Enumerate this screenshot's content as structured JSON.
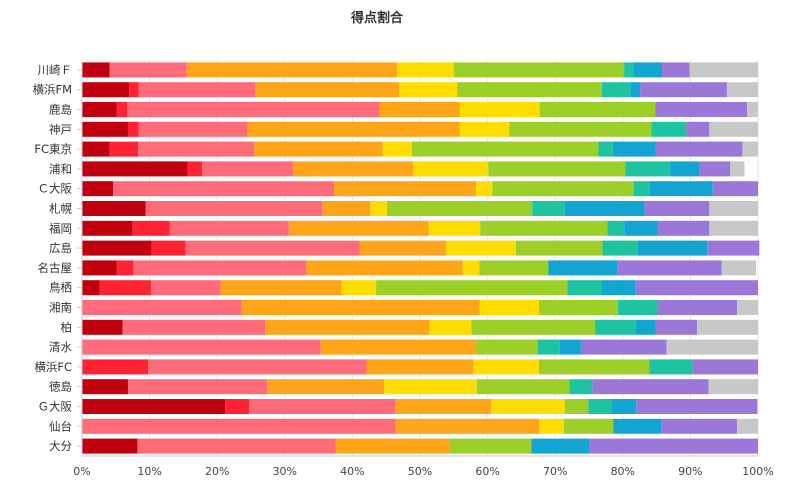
{
  "chart_data": {
    "type": "bar",
    "orientation": "horizontal",
    "stacked": true,
    "normalized": true,
    "title": "得点割合",
    "xlabel": "",
    "ylabel": "",
    "xlim": [
      0,
      100
    ],
    "x_ticks": [
      "0%",
      "10%",
      "20%",
      "30%",
      "40%",
      "50%",
      "60%",
      "70%",
      "80%",
      "90%",
      "100%"
    ],
    "grid": true,
    "legend": "none",
    "categories": [
      "川崎Ｆ",
      "横浜FM",
      "鹿島",
      "神戸",
      "FC東京",
      "浦和",
      "Ｃ大阪",
      "札幌",
      "福岡",
      "広島",
      "名古屋",
      "鳥栖",
      "湘南",
      "柏",
      "清水",
      "横浜FC",
      "徳島",
      "Ｇ大阪",
      "仙台",
      "大分"
    ],
    "series": [
      {
        "color": "#c0000f",
        "values": [
          4.1,
          7.0,
          5.1,
          6.8,
          4.1,
          15.6,
          4.6,
          9.4,
          7.5,
          10.3,
          5.1,
          2.6,
          0,
          6.0,
          0,
          0,
          6.8,
          21.2,
          0,
          8.2
        ]
      },
      {
        "color": "#ff2233",
        "values": [
          0,
          1.4,
          1.6,
          1.6,
          4.2,
          2.2,
          0,
          0,
          5.5,
          5.0,
          2.5,
          7.6,
          0,
          0,
          0,
          9.8,
          0,
          3.5,
          0,
          0
        ]
      },
      {
        "color": "#ff6b78",
        "values": [
          11.4,
          17.2,
          37.3,
          16.1,
          17.2,
          13.4,
          32.7,
          26.2,
          17.6,
          25.8,
          25.6,
          10.3,
          23.6,
          21.1,
          35.3,
          32.3,
          20.6,
          21.6,
          46.4,
          29.3
        ]
      },
      {
        "color": "#ffa51a",
        "values": [
          31.1,
          21.3,
          11.9,
          31.4,
          19.0,
          17.8,
          21.0,
          7.1,
          20.7,
          12.8,
          23.1,
          17.9,
          35.2,
          24.3,
          22.9,
          15.8,
          17.3,
          14.2,
          21.2,
          16.8
        ]
      },
      {
        "color": "#ffdd00",
        "values": [
          8.4,
          8.6,
          11.8,
          7.3,
          4.3,
          11.1,
          2.4,
          2.4,
          7.6,
          10.3,
          2.5,
          5.1,
          8.8,
          6.2,
          0,
          9.7,
          13.7,
          10.9,
          3.7,
          0
        ]
      },
      {
        "color": "#9ccf28",
        "values": [
          25.2,
          21.4,
          17.1,
          21.0,
          27.6,
          20.3,
          20.9,
          21.5,
          18.8,
          12.8,
          10.2,
          28.3,
          11.7,
          18.3,
          9.2,
          16.3,
          13.7,
          3.5,
          7.3,
          12.2
        ]
      },
      {
        "color": "#1ec4a0",
        "values": [
          1.4,
          4.2,
          0,
          5.2,
          2.1,
          6.6,
          2.4,
          4.8,
          2.5,
          5.2,
          0,
          5.0,
          5.9,
          6.0,
          3.3,
          6.4,
          3.4,
          3.5,
          0,
          0
        ]
      },
      {
        "color": "#13a4d2",
        "values": [
          4.2,
          1.5,
          0,
          0,
          6.4,
          4.4,
          9.3,
          11.8,
          5.0,
          10.3,
          10.2,
          5.1,
          0,
          3.0,
          3.1,
          0,
          0,
          3.6,
          7.1,
          8.5
        ]
      },
      {
        "color": "#9b78d8",
        "values": [
          4.1,
          12.8,
          13.6,
          3.4,
          12.8,
          4.5,
          6.7,
          9.6,
          7.6,
          7.7,
          15.4,
          18.1,
          11.7,
          6.1,
          12.7,
          9.7,
          17.2,
          17.9,
          11.2,
          25.0
        ]
      },
      {
        "color": "#c8c8c8",
        "values": [
          10.1,
          4.6,
          1.6,
          7.2,
          2.3,
          2.1,
          0,
          7.2,
          7.2,
          0,
          5.1,
          0,
          3.1,
          9.0,
          13.5,
          0,
          7.3,
          0,
          3.1,
          0
        ]
      }
    ]
  }
}
